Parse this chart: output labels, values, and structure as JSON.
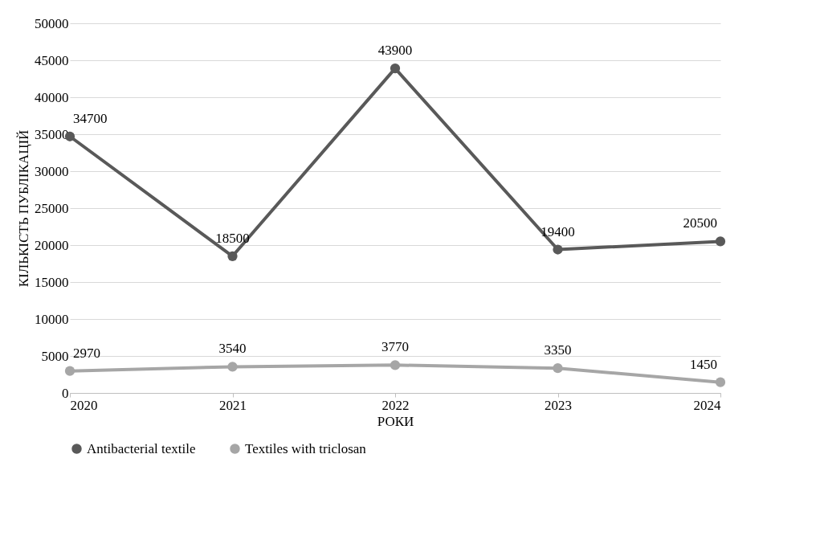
{
  "chart_data": {
    "type": "line",
    "xlabel": "РОКИ",
    "ylabel": "КІЛЬКІСТЬ ПУБЛІКАЦІЙ",
    "x": [
      2020,
      2021,
      2022,
      2023,
      2024
    ],
    "series": [
      {
        "name": "Antibacterial textile",
        "color": "#595959",
        "values": [
          34700,
          18500,
          43900,
          19400,
          20500
        ]
      },
      {
        "name": "Textiles with triclosan",
        "color": "#a6a6a6",
        "values": [
          2970,
          3540,
          3770,
          3350,
          1450
        ]
      }
    ],
    "xlim": [
      2020,
      2024
    ],
    "xticks": [
      2020,
      2021,
      2022,
      2023,
      2024
    ],
    "ylim": [
      0,
      50000
    ],
    "yticks": [
      0,
      5000,
      10000,
      15000,
      20000,
      25000,
      30000,
      35000,
      40000,
      45000,
      50000
    ],
    "grid": "y",
    "legend": "bottom",
    "marker": "circle",
    "line_style": "solid",
    "data_labels": true
  }
}
